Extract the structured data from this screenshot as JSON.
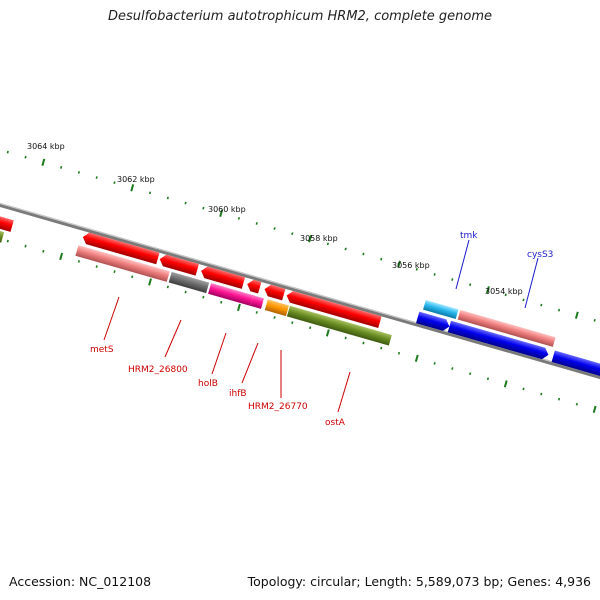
{
  "title": "Desulfobacterium autotrophicum HRM2, complete genome",
  "footer": {
    "accession": "Accession: NC_012108",
    "stats": "Topology: circular; Length: 5,589,073 bp; Genes: 4,936"
  },
  "ruler": [
    "3064 kbp",
    "3062 kbp",
    "3060 kbp",
    "3058 kbp",
    "3056 kbp",
    "3054 kbp"
  ],
  "gene_labels_below": [
    "metS",
    "HRM2_26800",
    "holB",
    "ihfB",
    "HRM2_26770",
    "ostA"
  ],
  "gene_labels_above": [
    "tmk",
    "cysS3"
  ],
  "colors": {
    "forward_strand": "#ff0000",
    "reverse_strand": "#0000ee",
    "rna_salmon": "#f08080",
    "pseudo_gray": "#707070",
    "magenta": "#ff1493",
    "orange": "#ff9900",
    "olive": "#6b8e23",
    "cyan": "#2ab8ee",
    "tick_green": "#1d7a1d",
    "label_red": "#cc0000",
    "label_blue": "#1a1acc"
  }
}
